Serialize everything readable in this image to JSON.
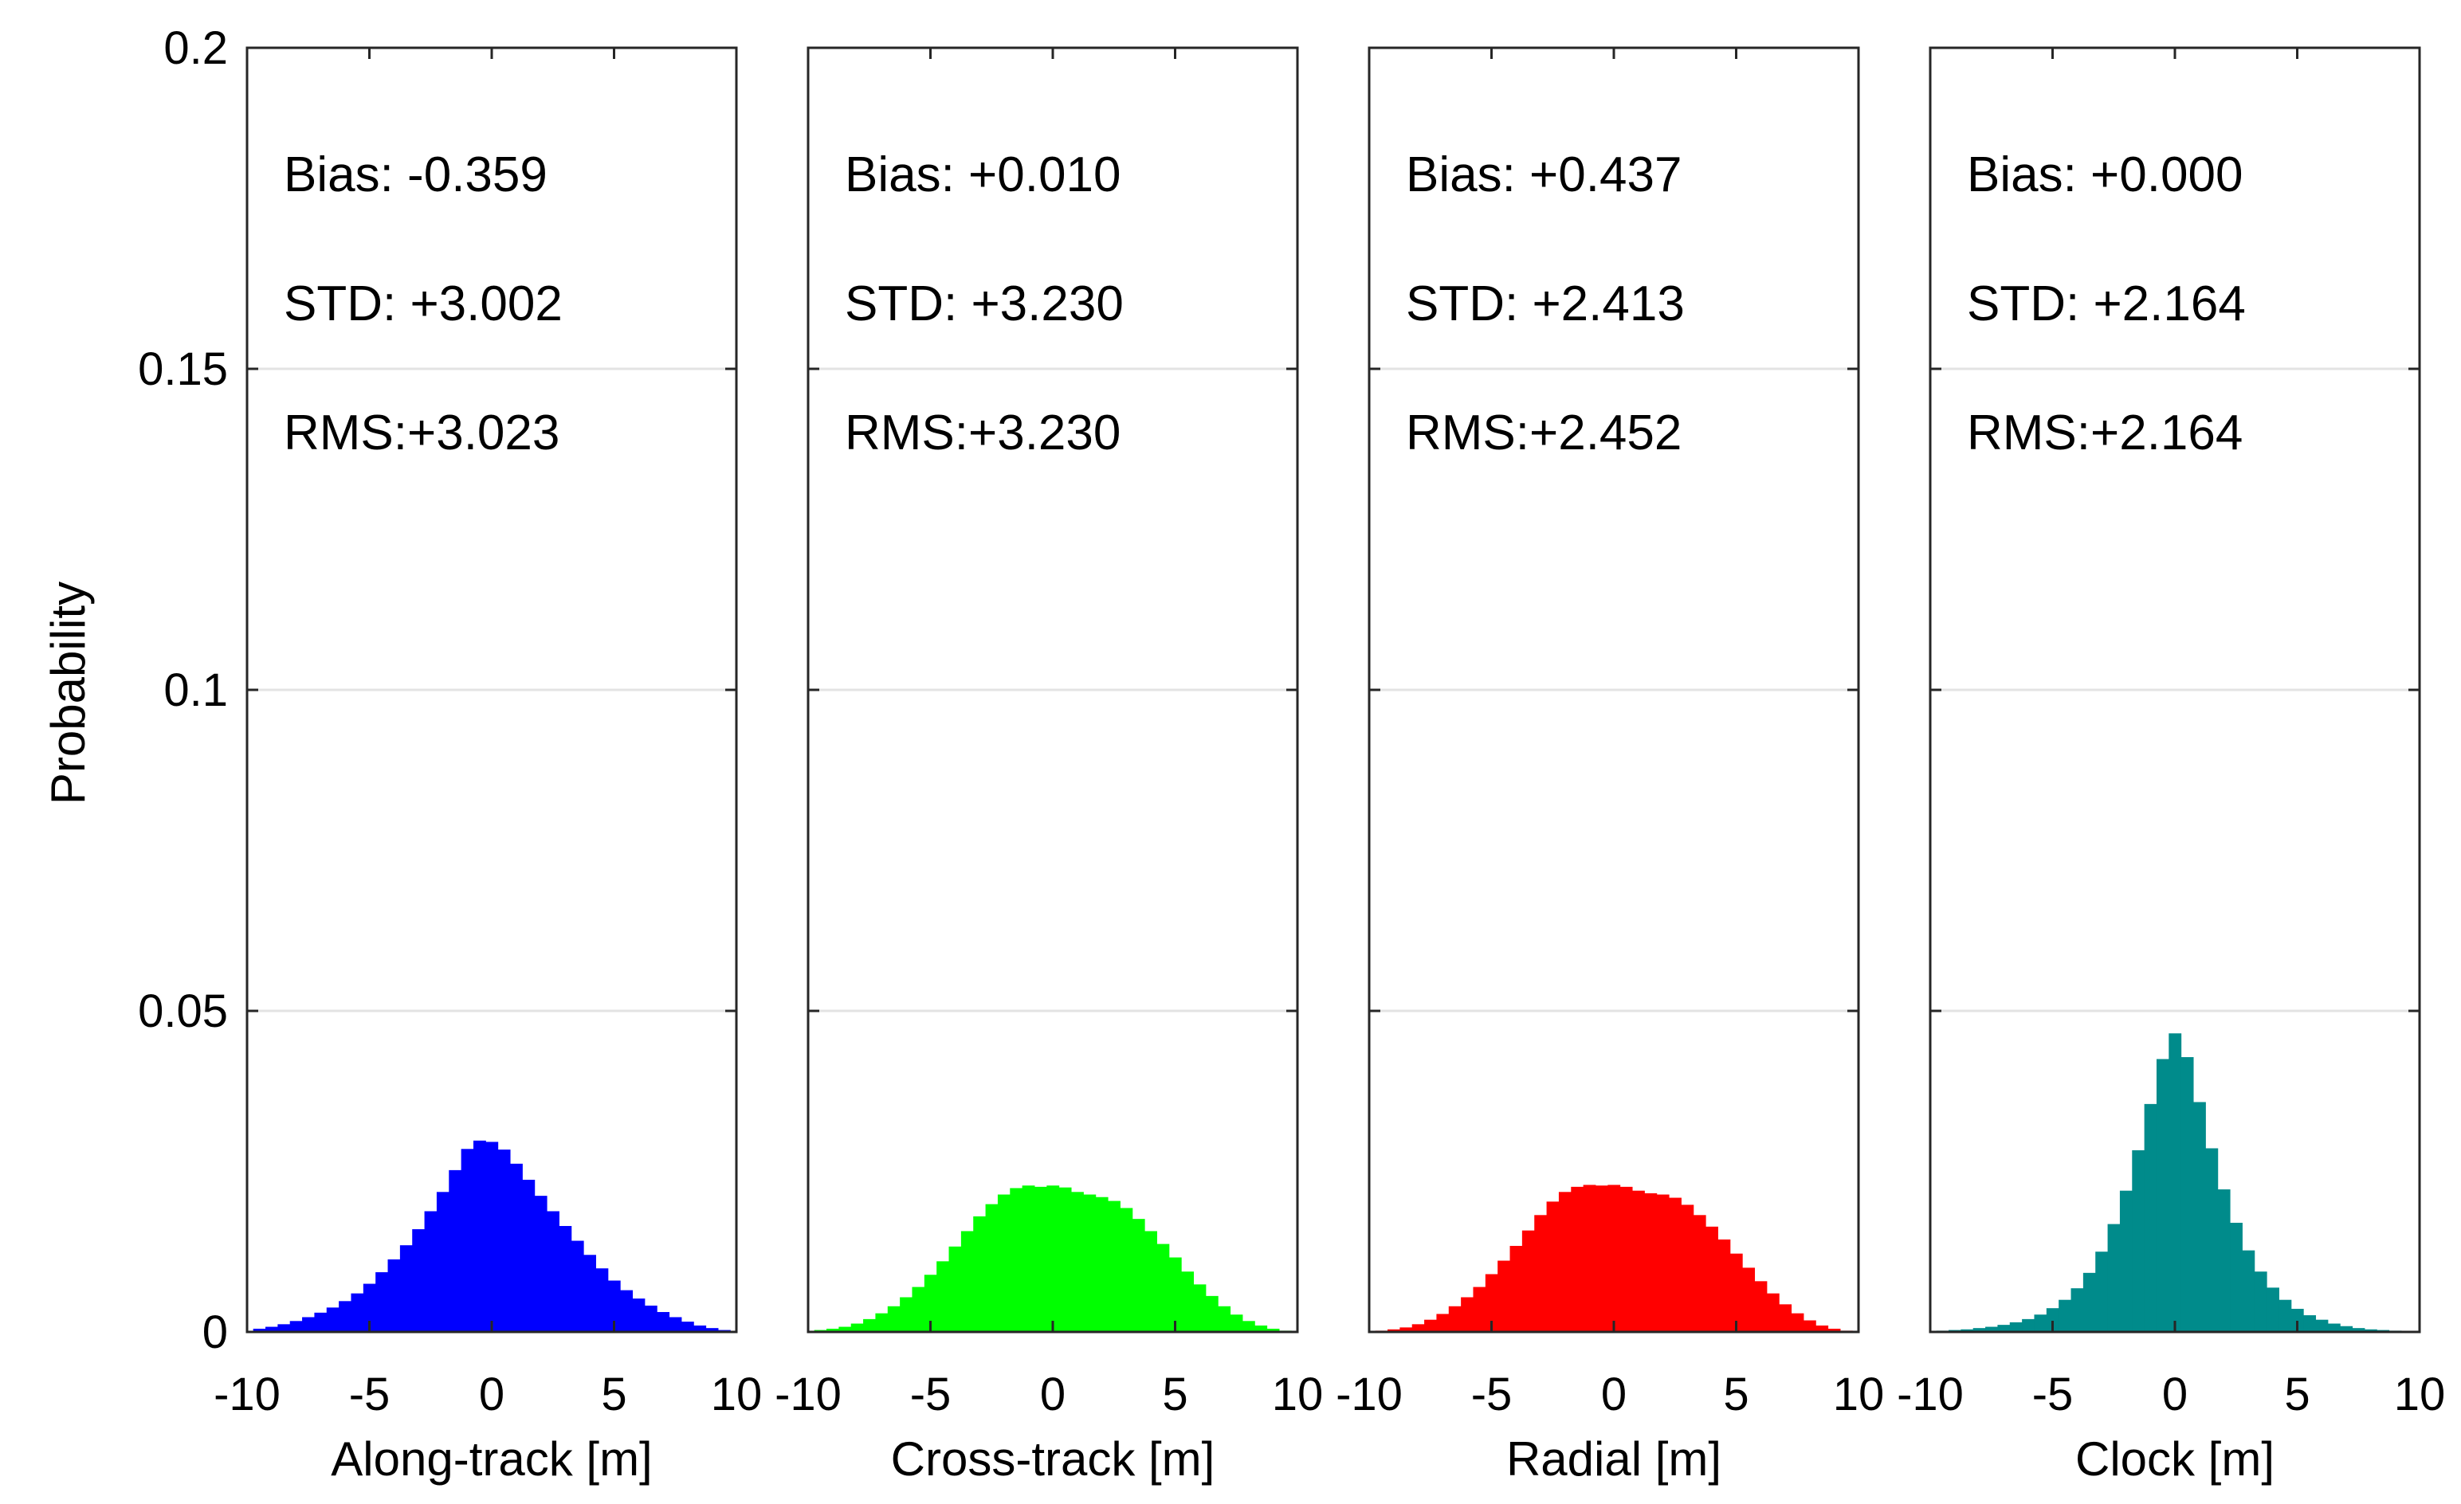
{
  "chart_data": {
    "type": "histogram",
    "ylabel": "Probability",
    "ylim": [
      0,
      0.2
    ],
    "yticks": [
      0,
      0.05,
      0.1,
      0.15,
      0.2
    ],
    "ytick_labels": [
      "0",
      "0.05",
      "0.1",
      "0.15",
      "0.2"
    ],
    "xlim": [
      -10,
      10
    ],
    "xticks": [
      -10,
      -5,
      0,
      5,
      10
    ],
    "xtick_labels": [
      "-10",
      "-5",
      "0",
      "5",
      "10"
    ],
    "grid": true,
    "panels": [
      {
        "xlabel": "Along-track [m]",
        "color": "#0000ff",
        "stats": {
          "bias": "Bias: -0.359",
          "std": "STD: +3.002",
          "rms": "RMS:+3.023"
        },
        "bin_centers": [
          -9.5,
          -9,
          -8.5,
          -8,
          -7.5,
          -7,
          -6.5,
          -6,
          -5.5,
          -5,
          -4.5,
          -4,
          -3.5,
          -3,
          -2.5,
          -2,
          -1.5,
          -1,
          -0.5,
          0,
          0.5,
          1,
          1.5,
          2,
          2.5,
          3,
          3.5,
          4,
          4.5,
          5,
          5.5,
          6,
          6.5,
          7,
          7.5,
          8,
          8.5,
          9,
          9.5
        ],
        "values": [
          0.0005,
          0.0008,
          0.0012,
          0.0017,
          0.0023,
          0.003,
          0.0038,
          0.0048,
          0.006,
          0.0075,
          0.0093,
          0.0113,
          0.0135,
          0.016,
          0.0188,
          0.0218,
          0.0252,
          0.0285,
          0.0298,
          0.0296,
          0.0284,
          0.0262,
          0.0237,
          0.0212,
          0.0188,
          0.0165,
          0.0142,
          0.012,
          0.0099,
          0.008,
          0.0065,
          0.0052,
          0.0041,
          0.0031,
          0.0023,
          0.0016,
          0.001,
          0.0006,
          0.0003
        ]
      },
      {
        "xlabel": "Cross-track [m]",
        "color": "#00ff00",
        "stats": {
          "bias": "Bias: +0.010",
          "std": "STD: +3.230",
          "rms": "RMS:+3.230"
        },
        "bin_centers": [
          -9.5,
          -9,
          -8.5,
          -8,
          -7.5,
          -7,
          -6.5,
          -6,
          -5.5,
          -5,
          -4.5,
          -4,
          -3.5,
          -3,
          -2.5,
          -2,
          -1.5,
          -1,
          -0.5,
          0,
          0.5,
          1,
          1.5,
          2,
          2.5,
          3,
          3.5,
          4,
          4.5,
          5,
          5.5,
          6,
          6.5,
          7,
          7.5,
          8,
          8.5,
          9,
          9.5
        ],
        "values": [
          0.0003,
          0.0005,
          0.0008,
          0.0013,
          0.002,
          0.0029,
          0.004,
          0.0054,
          0.007,
          0.0089,
          0.011,
          0.0133,
          0.0157,
          0.018,
          0.0199,
          0.0214,
          0.0224,
          0.0228,
          0.0226,
          0.0228,
          0.0225,
          0.0218,
          0.0214,
          0.021,
          0.0204,
          0.0193,
          0.0176,
          0.0157,
          0.0137,
          0.0116,
          0.0094,
          0.0074,
          0.0056,
          0.004,
          0.0027,
          0.0017,
          0.001,
          0.0005,
          0.0002
        ]
      },
      {
        "xlabel": "Radial [m]",
        "color": "#ff0000",
        "stats": {
          "bias": "Bias: +0.437",
          "std": "STD: +2.413",
          "rms": "RMS:+2.452"
        },
        "bin_centers": [
          -9.5,
          -9,
          -8.5,
          -8,
          -7.5,
          -7,
          -6.5,
          -6,
          -5.5,
          -5,
          -4.5,
          -4,
          -3.5,
          -3,
          -2.5,
          -2,
          -1.5,
          -1,
          -0.5,
          0,
          0.5,
          1,
          1.5,
          2,
          2.5,
          3,
          3.5,
          4,
          4.5,
          5,
          5.5,
          6,
          6.5,
          7,
          7.5,
          8,
          8.5,
          9,
          9.5
        ],
        "values": [
          0.0002,
          0.0004,
          0.0007,
          0.0012,
          0.0019,
          0.0028,
          0.004,
          0.0054,
          0.007,
          0.009,
          0.0111,
          0.0134,
          0.0158,
          0.0182,
          0.0203,
          0.0218,
          0.0226,
          0.0229,
          0.0228,
          0.0229,
          0.0226,
          0.022,
          0.0216,
          0.0214,
          0.0209,
          0.0198,
          0.0182,
          0.0164,
          0.0144,
          0.0122,
          0.01,
          0.0079,
          0.006,
          0.0043,
          0.0029,
          0.0018,
          0.001,
          0.0005,
          0.0002
        ]
      },
      {
        "xlabel": "Clock [m]",
        "color": "#008b8b",
        "stats": {
          "bias": "Bias: +0.000",
          "std": "STD: +2.164",
          "rms": "RMS:+2.164"
        },
        "bin_centers": [
          -9.5,
          -9,
          -8.5,
          -8,
          -7.5,
          -7,
          -6.5,
          -6,
          -5.5,
          -5,
          -4.5,
          -4,
          -3.5,
          -3,
          -2.5,
          -2,
          -1.5,
          -1,
          -0.5,
          0,
          0.5,
          1,
          1.5,
          2,
          2.5,
          3,
          3.5,
          4,
          4.5,
          5,
          5.5,
          6,
          6.5,
          7,
          7.5,
          8,
          8.5,
          9,
          9.5
        ],
        "values": [
          0.0002,
          0.0003,
          0.0004,
          0.0006,
          0.0008,
          0.0011,
          0.0015,
          0.002,
          0.0027,
          0.0037,
          0.005,
          0.0068,
          0.0092,
          0.0125,
          0.0168,
          0.022,
          0.0283,
          0.0355,
          0.0425,
          0.0465,
          0.0428,
          0.0358,
          0.0286,
          0.0222,
          0.017,
          0.0127,
          0.0094,
          0.0069,
          0.005,
          0.0036,
          0.0026,
          0.0019,
          0.0013,
          0.0009,
          0.0006,
          0.0004,
          0.0003,
          0.0002,
          0.0001
        ]
      }
    ]
  }
}
